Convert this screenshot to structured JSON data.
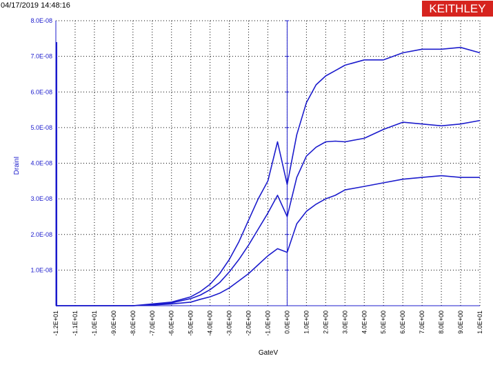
{
  "header": {
    "timestamp": "04/17/2019 14:48:16",
    "brand": "KEITHLEY",
    "brand_color": "#d6231e"
  },
  "colors": {
    "data": "#1a1acc",
    "ytick": "#1a1acc",
    "xtick": "#000000",
    "grid": "#000000"
  },
  "chart_data": {
    "type": "line",
    "title": "",
    "xlabel": "GateV",
    "ylabel": "DrainI",
    "xlim": [
      -12,
      10
    ],
    "ylim": [
      0,
      8e-08
    ],
    "grid": true,
    "x_ticks": [
      -12,
      -11,
      -10,
      -9,
      -8,
      -7,
      -6,
      -5,
      -4,
      -3,
      -2,
      -1,
      0,
      1,
      2,
      3,
      4,
      5,
      6,
      7,
      8,
      9,
      10
    ],
    "x_tick_labels": [
      "-1.2E+01",
      "-1.1E+01",
      "-1.0E+01",
      "-9.0E+00",
      "-8.0E+00",
      "-7.0E+00",
      "-6.0E+00",
      "-5.0E+00",
      "-4.0E+00",
      "-3.0E+00",
      "-2.0E+00",
      "-1.0E+00",
      "0.0E+00",
      "1.0E+00",
      "2.0E+00",
      "3.0E+00",
      "4.0E+00",
      "5.0E+00",
      "6.0E+00",
      "7.0E+00",
      "8.0E+00",
      "9.0E+00",
      "1.0E+01"
    ],
    "y_ticks": [
      1e-08,
      2e-08,
      3e-08,
      4e-08,
      5e-08,
      6e-08,
      7e-08,
      8e-08
    ],
    "y_tick_labels": [
      "1.0E-08",
      "2.0E-08",
      "3.0E-08",
      "4.0E-08",
      "5.0E-08",
      "6.0E-08",
      "7.0E-08",
      "8.0E-08"
    ],
    "series": [
      {
        "x": [
          -12,
          -11,
          -10,
          -9,
          -8,
          -7,
          -6,
          -5,
          -4.5,
          -4,
          -3.5,
          -3,
          -2.5,
          -2,
          -1.5,
          -1,
          -0.5,
          0,
          0.5,
          1,
          1.5,
          2,
          2.5,
          3,
          4,
          5,
          6,
          7,
          8,
          9,
          10
        ],
        "values": [
          0,
          0,
          0,
          0,
          0,
          5e-10,
          1e-09,
          2.5e-09,
          4e-09,
          6e-09,
          9e-09,
          1.3e-08,
          1.8e-08,
          2.4e-08,
          3e-08,
          3.5e-08,
          4.6e-08,
          3.4e-08,
          4.8e-08,
          5.7e-08,
          6.2e-08,
          6.45e-08,
          6.6e-08,
          6.75e-08,
          6.9e-08,
          6.9e-08,
          7.1e-08,
          7.2e-08,
          7.2e-08,
          7.25e-08,
          7.1e-08
        ]
      },
      {
        "x": [
          -12,
          -11,
          -10,
          -9,
          -8,
          -7,
          -6,
          -5,
          -4.5,
          -4,
          -3.5,
          -3,
          -2.5,
          -2,
          -1.5,
          -1,
          -0.5,
          0,
          0.5,
          1,
          1.5,
          2,
          2.5,
          3,
          4,
          5,
          6,
          7,
          8,
          9,
          10
        ],
        "values": [
          0,
          0,
          0,
          0,
          0,
          3e-10,
          8e-10,
          2e-09,
          3e-09,
          4.5e-09,
          6.5e-09,
          9.5e-09,
          1.3e-08,
          1.7e-08,
          2.15e-08,
          2.6e-08,
          3.1e-08,
          2.5e-08,
          3.6e-08,
          4.2e-08,
          4.45e-08,
          4.6e-08,
          4.62e-08,
          4.6e-08,
          4.7e-08,
          4.95e-08,
          5.15e-08,
          5.1e-08,
          5.05e-08,
          5.1e-08,
          5.2e-08
        ]
      },
      {
        "x": [
          -12,
          -11,
          -10,
          -9,
          -8,
          -7,
          -6,
          -5,
          -4.5,
          -4,
          -3.5,
          -3,
          -2.5,
          -2,
          -1.5,
          -1,
          -0.5,
          0,
          0.5,
          1,
          1.5,
          2,
          2.5,
          3,
          4,
          5,
          6,
          7,
          8,
          9,
          10
        ],
        "values": [
          0,
          0,
          0,
          0,
          0,
          2e-10,
          5e-10,
          1e-09,
          1.8e-09,
          2.5e-09,
          3.5e-09,
          5e-09,
          7e-09,
          9e-09,
          1.15e-08,
          1.4e-08,
          1.6e-08,
          1.5e-08,
          2.3e-08,
          2.65e-08,
          2.85e-08,
          3e-08,
          3.1e-08,
          3.25e-08,
          3.35e-08,
          3.45e-08,
          3.55e-08,
          3.6e-08,
          3.65e-08,
          3.6e-08,
          3.6e-08
        ]
      }
    ]
  }
}
